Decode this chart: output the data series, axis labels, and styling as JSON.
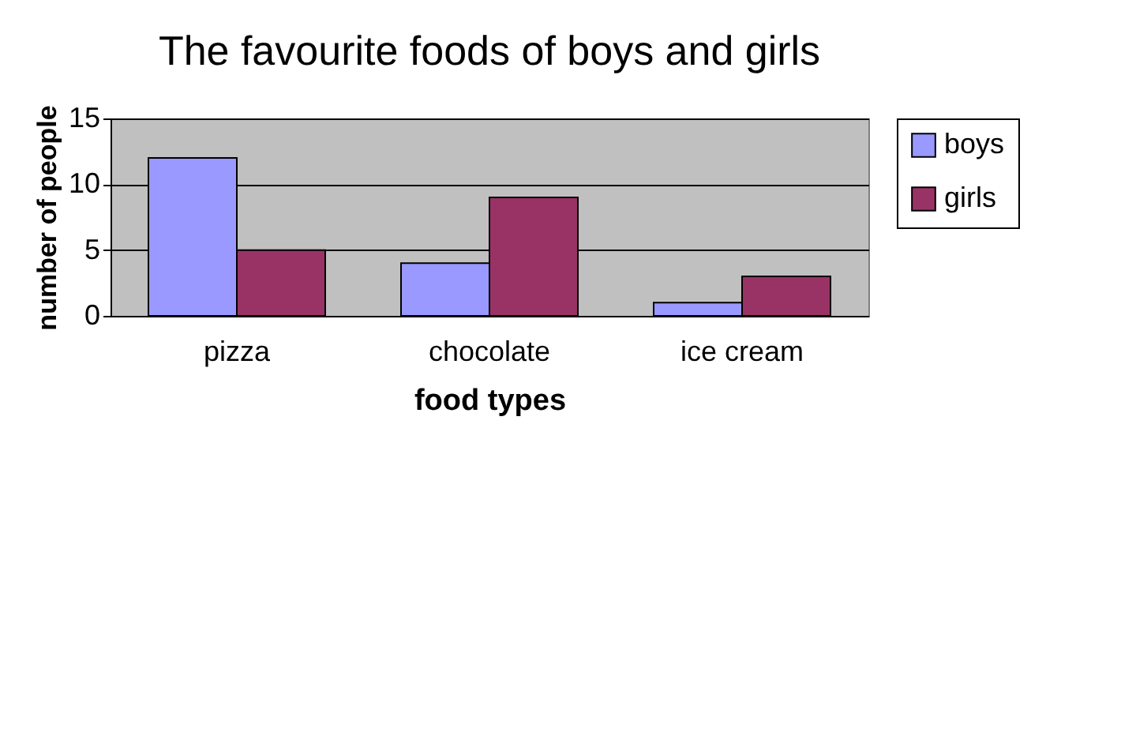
{
  "chart_data": {
    "type": "bar",
    "title": "The favourite foods of boys and girls",
    "xlabel": "food types",
    "ylabel": "number of people",
    "categories": [
      "pizza",
      "chocolate",
      "ice cream"
    ],
    "series": [
      {
        "name": "boys",
        "color": "#9999ff",
        "values": [
          12,
          4,
          1
        ]
      },
      {
        "name": "girls",
        "color": "#993366",
        "values": [
          5,
          9,
          3
        ]
      }
    ],
    "ylim": [
      0,
      15
    ],
    "yticks": [
      0,
      5,
      10,
      15
    ],
    "grid": "y",
    "legend": "right"
  }
}
